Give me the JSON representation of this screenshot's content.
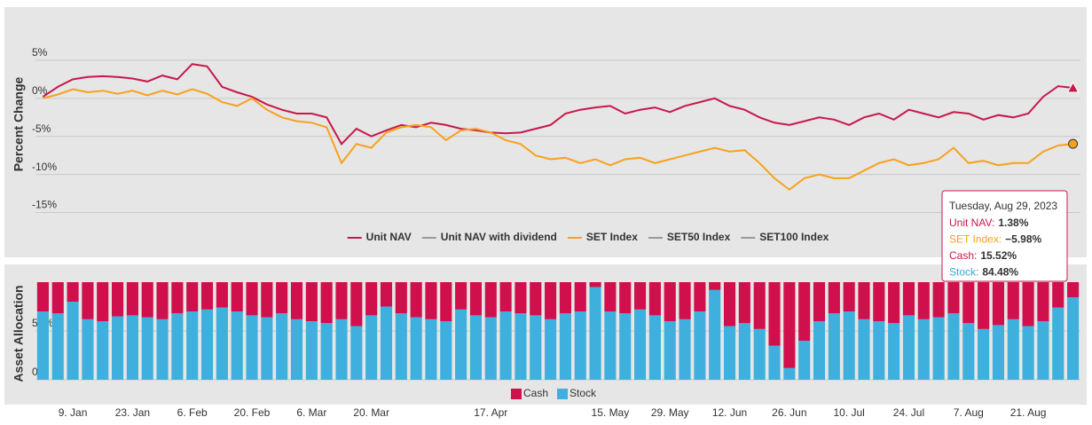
{
  "chart_data": [
    {
      "type": "line",
      "y_label": "Percent Change",
      "ylim": [
        -17.5,
        10
      ],
      "yticks": [
        {
          "value": -15,
          "label": "-15%"
        },
        {
          "value": -10,
          "label": "-10%"
        },
        {
          "value": -5,
          "label": "-5%"
        },
        {
          "value": 0,
          "label": "0%"
        },
        {
          "value": 5,
          "label": "5%"
        }
      ],
      "grid": true,
      "series": [
        {
          "name": "Unit NAV",
          "color": "#c8184a",
          "visible": true,
          "marker": "triangle",
          "values": [
            0.2,
            1.5,
            2.5,
            2.8,
            2.9,
            2.8,
            2.6,
            2.2,
            3.0,
            2.5,
            4.5,
            4.2,
            1.5,
            0.8,
            0.2,
            -0.8,
            -1.5,
            -2.0,
            -2.0,
            -2.5,
            -6.0,
            -4.0,
            -5.0,
            -4.2,
            -3.5,
            -3.8,
            -3.2,
            -3.5,
            -4.0,
            -4.2,
            -4.5,
            -4.6,
            -4.5,
            -4.0,
            -3.5,
            -2.0,
            -1.5,
            -1.2,
            -1.0,
            -2.0,
            -1.5,
            -1.2,
            -1.8,
            -1.0,
            -0.5,
            0.0,
            -1.0,
            -1.5,
            -2.5,
            -3.2,
            -3.5,
            -3.0,
            -2.5,
            -2.8,
            -3.5,
            -2.5,
            -2.0,
            -2.8,
            -1.5,
            -2.0,
            -2.5,
            -1.8,
            -2.0,
            -2.8,
            -2.2,
            -2.5,
            -2.0,
            0.2,
            1.6,
            1.38
          ]
        },
        {
          "name": "Unit NAV with dividend",
          "color": "#999999",
          "visible": false
        },
        {
          "name": "SET Index",
          "color": "#f7a21b",
          "visible": true,
          "marker": "circle",
          "values": [
            0.0,
            0.5,
            1.2,
            0.8,
            1.0,
            0.6,
            1.0,
            0.4,
            1.0,
            0.5,
            1.2,
            0.6,
            -0.5,
            -1.0,
            0.0,
            -1.5,
            -2.5,
            -3.0,
            -3.2,
            -3.8,
            -8.5,
            -6.0,
            -6.5,
            -4.5,
            -3.8,
            -3.5,
            -3.8,
            -5.5,
            -4.2,
            -4.0,
            -4.5,
            -5.5,
            -6.0,
            -7.5,
            -8.0,
            -7.8,
            -8.5,
            -8.0,
            -8.8,
            -8.0,
            -7.8,
            -8.5,
            -8.0,
            -7.5,
            -7.0,
            -6.5,
            -7.0,
            -6.8,
            -8.5,
            -10.5,
            -12.0,
            -10.5,
            -10.0,
            -10.5,
            -10.5,
            -9.5,
            -8.5,
            -8.0,
            -8.8,
            -8.5,
            -8.0,
            -6.5,
            -8.5,
            -8.2,
            -8.8,
            -8.5,
            -8.5,
            -7.0,
            -6.2,
            -5.98
          ]
        },
        {
          "name": "SET50 Index",
          "color": "#999999",
          "visible": false
        },
        {
          "name": "SET100 Index",
          "color": "#999999",
          "visible": false
        }
      ],
      "tooltip": {
        "title": "Tuesday, Aug 29, 2023",
        "items": [
          {
            "label": "Unit NAV:",
            "value": "1.38%",
            "color": "#c8184a"
          },
          {
            "label": "SET Index:",
            "value": "−5.98%",
            "color": "#f7a21b"
          },
          {
            "label": "Cash:",
            "value": "15.52%",
            "color": "#c8184a"
          },
          {
            "label": "Stock:",
            "value": "84.48%",
            "color": "#3aa8d8"
          }
        ]
      }
    },
    {
      "type": "stacked_bar",
      "y_label": "Asset Allocation",
      "ylim": [
        0,
        100
      ],
      "yticks": [
        {
          "value": 0,
          "label": "0%"
        },
        {
          "value": 50,
          "label": "50%"
        }
      ],
      "grid": true,
      "categories": [
        null,
        null,
        "9. Jan",
        null,
        null,
        null,
        "23. Jan",
        null,
        null,
        null,
        "6. Feb",
        null,
        null,
        null,
        "20. Feb",
        null,
        null,
        null,
        "6. Mar",
        null,
        null,
        null,
        "20. Mar",
        null,
        null,
        null,
        null,
        null,
        null,
        null,
        "17. Apr",
        null,
        null,
        null,
        null,
        null,
        null,
        null,
        "15. May",
        null,
        null,
        null,
        "29. May",
        null,
        null,
        null,
        "12. Jun",
        null,
        null,
        null,
        "26. Jun",
        null,
        null,
        null,
        "10. Jul",
        null,
        null,
        null,
        "24. Jul",
        null,
        null,
        null,
        "7. Aug",
        null,
        null,
        null,
        "21. Aug",
        null,
        null,
        null
      ],
      "series": [
        {
          "name": "Stock",
          "color": "#3fb0dd",
          "values": [
            70,
            68,
            80,
            62,
            60,
            65,
            66,
            64,
            62,
            68,
            70,
            72,
            74,
            70,
            66,
            64,
            68,
            62,
            60,
            58,
            62,
            55,
            66,
            75,
            68,
            64,
            62,
            60,
            72,
            66,
            64,
            70,
            68,
            66,
            62,
            68,
            70,
            95,
            70,
            68,
            72,
            66,
            60,
            62,
            70,
            92,
            55,
            58,
            52,
            35,
            12,
            40,
            60,
            68,
            70,
            62,
            60,
            58,
            66,
            62,
            64,
            68,
            58,
            52,
            56,
            62,
            55,
            60,
            74,
            84.48
          ]
        },
        {
          "name": "Cash",
          "color": "#d0104c",
          "values": [
            30,
            32,
            20,
            38,
            40,
            35,
            34,
            36,
            38,
            32,
            30,
            28,
            26,
            30,
            34,
            36,
            32,
            38,
            40,
            42,
            38,
            45,
            34,
            25,
            32,
            36,
            38,
            40,
            28,
            34,
            36,
            30,
            32,
            34,
            38,
            32,
            30,
            5,
            30,
            32,
            28,
            34,
            40,
            38,
            30,
            8,
            45,
            42,
            48,
            65,
            88,
            60,
            40,
            32,
            30,
            38,
            40,
            42,
            34,
            38,
            36,
            32,
            42,
            48,
            44,
            38,
            45,
            40,
            26,
            15.52
          ]
        }
      ],
      "legend_order": [
        1,
        0
      ]
    }
  ]
}
